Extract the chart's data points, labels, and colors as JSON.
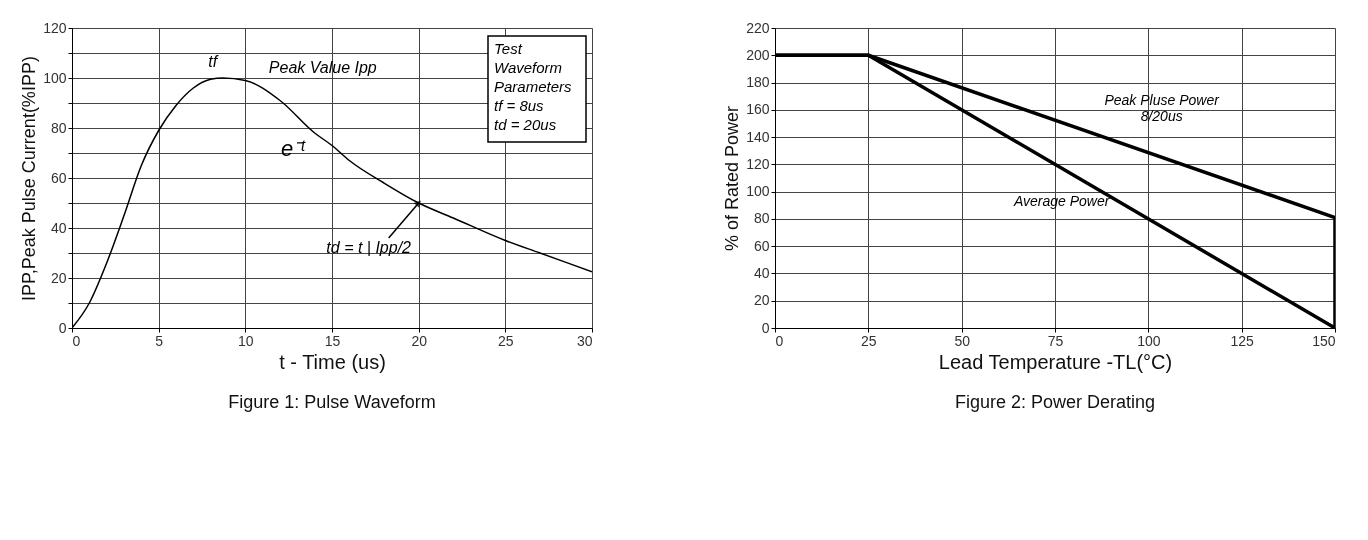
{
  "chart_data": [
    {
      "type": "line",
      "title": "Figure 1: Pulse Waveform",
      "xlabel": "t - Time (us)",
      "ylabel": "IPP,Peak Pulse Current(%IPP)",
      "x": [
        0,
        1,
        2,
        3,
        4,
        5,
        6,
        7,
        8,
        8.7,
        10,
        12,
        14,
        15,
        16,
        18,
        20,
        22,
        25,
        27,
        30
      ],
      "series": [
        {
          "color": "#000000",
          "values": [
            0,
            10,
            26,
            45,
            65,
            79,
            89,
            96,
            99.5,
            100,
            99,
            91,
            78,
            73,
            67,
            58,
            50,
            44,
            35,
            30,
            22.5
          ]
        }
      ],
      "xlim": [
        0,
        30
      ],
      "ylim": [
        0,
        120
      ],
      "xticks": [
        0,
        5,
        10,
        15,
        20,
        25,
        30
      ],
      "yticks": [
        0,
        {
          "value": 10,
          "label": null
        },
        20,
        {
          "value": 30,
          "label": null
        },
        40,
        {
          "value": 50,
          "label": null
        },
        60,
        {
          "value": 70,
          "label": null
        },
        80,
        {
          "value": 90,
          "label": null
        },
        100,
        {
          "value": 110,
          "label": null
        },
        120
      ],
      "grid": true,
      "legend": false,
      "marker": "none",
      "line_style": "solid",
      "annotations": [
        {
          "text": "tf",
          "x": 8.7,
          "y": 100
        },
        {
          "text": "Peak Value Ipp",
          "x": 8.7,
          "y": 100
        },
        {
          "text": "e⁻ᵗ",
          "x": 14,
          "y": 78
        },
        {
          "text": "td = t | Ipp/2",
          "x": 20,
          "y": 50
        },
        "Test\nWaveform\nParameters\ntf = 8us\ntd = 20us"
      ]
    },
    {
      "type": "line",
      "title": "Figure 2: Power Derating",
      "xlabel": "Lead Temperature -TL(°C)",
      "ylabel": "% of Rated Power",
      "series": [
        {
          "name": "Peak Pluse Power\n8/20us",
          "color": "#000000",
          "x": [
            0,
            25,
            150,
            150
          ],
          "values": [
            200,
            200,
            81,
            0
          ]
        },
        {
          "name": "Average Power",
          "color": "#000000",
          "x": [
            0,
            25,
            150
          ],
          "values": [
            200,
            200,
            0
          ]
        }
      ],
      "xlim": [
        0,
        150
      ],
      "ylim": [
        0,
        220
      ],
      "xticks": [
        0,
        25,
        50,
        75,
        100,
        125,
        150
      ],
      "yticks": [
        0,
        20,
        40,
        60,
        80,
        100,
        120,
        140,
        160,
        180,
        200,
        220
      ],
      "grid": true,
      "legend": false,
      "marker": "none",
      "line_style": "solid"
    }
  ]
}
